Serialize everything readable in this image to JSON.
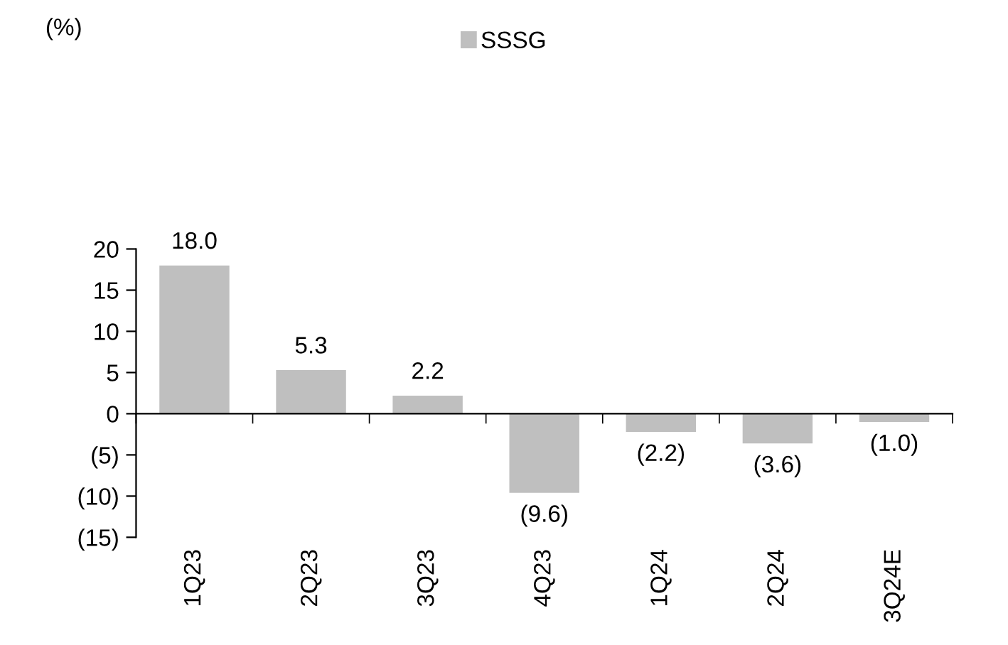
{
  "chart_data": {
    "type": "bar",
    "annotations": [
      "(%)"
    ],
    "categories": [
      "1Q23",
      "2Q23",
      "3Q23",
      "4Q23",
      "1Q24",
      "2Q24",
      "3Q24E"
    ],
    "series": [
      {
        "name": "SSSG",
        "color": "#bfbfbf",
        "values": [
          18.0,
          5.3,
          2.2,
          -9.6,
          -2.2,
          -3.6,
          -1.0
        ],
        "value_labels": [
          "18.0",
          "5.3",
          "2.2",
          "(9.6)",
          "(2.2)",
          "(3.6)",
          "(1.0)"
        ]
      }
    ],
    "ylim": [
      -15,
      20
    ],
    "yticks": [
      {
        "value": -15,
        "label": "(15)"
      },
      {
        "value": -10,
        "label": "(10)"
      },
      {
        "value": -5,
        "label": "(5)"
      },
      0,
      5,
      10,
      15,
      20
    ],
    "legend": "top"
  }
}
